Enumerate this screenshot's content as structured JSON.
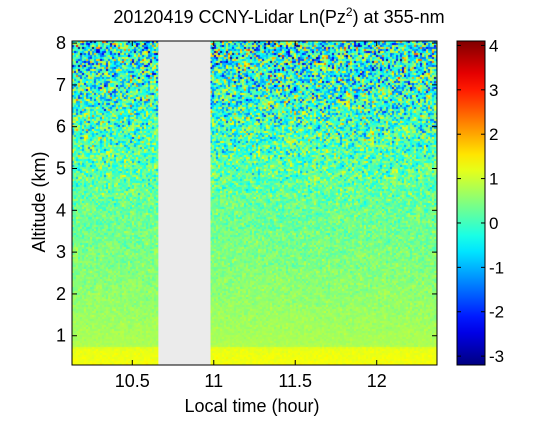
{
  "chart_data": {
    "type": "heatmap",
    "title": {
      "main": "20120419 CCNY-Lidar Ln(Pz",
      "sup": "2",
      "rest": ") at 355-nm"
    },
    "xlabel": "Local time (hour)",
    "ylabel": "Altitude (km)",
    "xlim": [
      10.13,
      12.37
    ],
    "ylim": [
      0.3,
      8.05
    ],
    "x_ticks": [
      {
        "value": 10.5,
        "label": "10.5"
      },
      {
        "value": 11.0,
        "label": "11"
      },
      {
        "value": 11.5,
        "label": "11.5"
      },
      {
        "value": 12.0,
        "label": "12"
      }
    ],
    "y_ticks": [
      {
        "value": 1,
        "label": "1"
      },
      {
        "value": 2,
        "label": "2"
      },
      {
        "value": 3,
        "label": "3"
      },
      {
        "value": 4,
        "label": "4"
      },
      {
        "value": 5,
        "label": "5"
      },
      {
        "value": 6,
        "label": "6"
      },
      {
        "value": 7,
        "label": "7"
      },
      {
        "value": 8,
        "label": "8"
      }
    ],
    "data_gap": {
      "x_start": 10.66,
      "x_end": 10.98,
      "color": "#ebebeb"
    },
    "colormap": "jet",
    "colorbar": {
      "range": [
        -3.2,
        4.1
      ],
      "ticks": [
        {
          "value": 4,
          "label": "4"
        },
        {
          "value": 3,
          "label": "3"
        },
        {
          "value": 2,
          "label": "2"
        },
        {
          "value": 1,
          "label": "1"
        },
        {
          "value": 0,
          "label": "0"
        },
        {
          "value": -1,
          "label": "-1"
        },
        {
          "value": -2,
          "label": "-2"
        },
        {
          "value": -3,
          "label": "-3"
        }
      ]
    },
    "signal_profile": [
      {
        "altitude": 0.3,
        "value": 1.3
      },
      {
        "altitude": 0.7,
        "value": 1.2
      },
      {
        "altitude": 0.75,
        "value": 0.78
      },
      {
        "altitude": 1.5,
        "value": 0.65
      },
      {
        "altitude": 2.5,
        "value": 0.5
      },
      {
        "altitude": 3.5,
        "value": 0.35
      },
      {
        "altitude": 4.0,
        "value": 0.3
      },
      {
        "altitude": 5.0,
        "value": 0.2
      },
      {
        "altitude": 6.0,
        "value": 0.05
      },
      {
        "altitude": 7.0,
        "value": -0.15
      },
      {
        "altitude": 8.0,
        "value": -0.3
      }
    ]
  }
}
